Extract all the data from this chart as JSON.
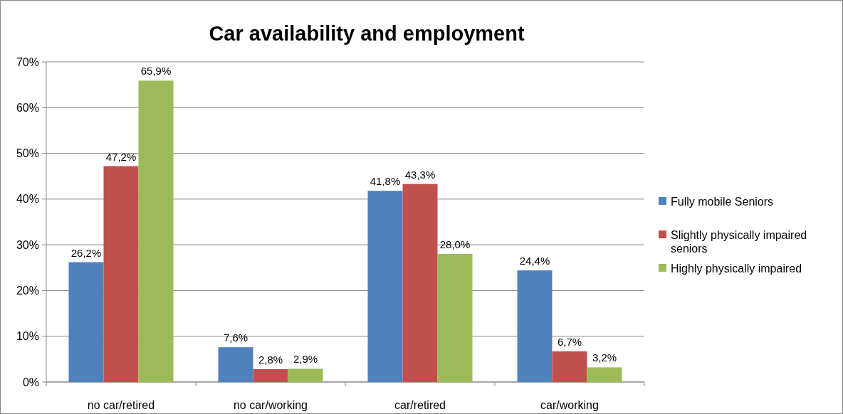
{
  "chart_data": {
    "type": "bar",
    "title": "Car availability and employment",
    "categories": [
      "no car/retired",
      "no car/working",
      "car/retired",
      "car/working"
    ],
    "series": [
      {
        "name": "Fully mobile Seniors",
        "color": "#4f81bd",
        "values": [
          26.2,
          7.6,
          41.8,
          24.4
        ],
        "value_labels": [
          "26,2%",
          "7,6%",
          "41,8%",
          "24,4%"
        ]
      },
      {
        "name": "Slightly physically impaired seniors",
        "color": "#c0504d",
        "values": [
          47.2,
          2.8,
          43.3,
          6.7
        ],
        "value_labels": [
          "47,2%",
          "2,8%",
          "43,3%",
          "6,7%"
        ]
      },
      {
        "name": "Highly physically impaired",
        "color": "#9bbb59",
        "values": [
          65.9,
          2.9,
          28.0,
          3.2
        ],
        "value_labels": [
          "65,9%",
          "2,9%",
          "28,0%",
          "3,2%"
        ]
      }
    ],
    "ylim": [
      0,
      70
    ],
    "yticks": [
      {
        "value": 0,
        "label": "0%"
      },
      {
        "value": 10,
        "label": "10%"
      },
      {
        "value": 20,
        "label": "20%"
      },
      {
        "value": 30,
        "label": "30%"
      },
      {
        "value": 40,
        "label": "40%"
      },
      {
        "value": 50,
        "label": "50%"
      },
      {
        "value": 60,
        "label": "60%"
      },
      {
        "value": 70,
        "label": "70%"
      }
    ],
    "grid": "y",
    "legend": "right"
  }
}
